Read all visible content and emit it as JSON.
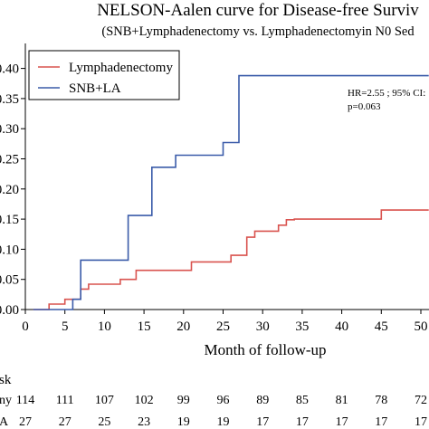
{
  "chart_data": {
    "type": "line",
    "title": "NELSON-Aalen curve for Disease-free Surviv",
    "subtitle": "(SNB+Lymphadenectomy vs. Lymphadenectomyin N0 Sed",
    "xlabel": "Month of follow-up",
    "ylabel": "",
    "xlim": [
      0,
      51
    ],
    "ylim": [
      0,
      0.42
    ],
    "xticks": [
      0,
      5,
      10,
      15,
      20,
      25,
      30,
      35,
      40,
      45,
      50
    ],
    "xtick_labels": [
      "0",
      "5",
      "10",
      "15",
      "20",
      "25",
      "30",
      "35",
      "40",
      "45",
      "50"
    ],
    "yticks": [
      0.0,
      0.05,
      0.1,
      0.15,
      0.2,
      0.25,
      0.3,
      0.35,
      0.4
    ],
    "ytick_labels": [
      "0.00",
      "0.05",
      "0.10",
      "0.15",
      "0.20",
      "0.25",
      "0.30",
      "0.35",
      "0.40"
    ],
    "step": true,
    "legend_position": "top-left",
    "annotation": [
      "HR=2.55 ; 95% CI:",
      "p=0.063"
    ],
    "series": [
      {
        "name": "Lymphadenectomy",
        "color": "#d9534f",
        "x": [
          1,
          3,
          5,
          7,
          8,
          12,
          14,
          21,
          26,
          28,
          29,
          32,
          33,
          34,
          45,
          51
        ],
        "y": [
          0.0,
          0.009,
          0.017,
          0.034,
          0.042,
          0.05,
          0.065,
          0.079,
          0.09,
          0.12,
          0.13,
          0.14,
          0.149,
          0.15,
          0.165,
          0.165
        ]
      },
      {
        "name": "SNB+LA",
        "color": "#3a5ba9",
        "x": [
          1,
          6,
          7,
          13,
          16,
          19,
          25,
          27,
          51
        ],
        "y": [
          0.0,
          0.017,
          0.082,
          0.156,
          0.236,
          0.256,
          0.277,
          0.388,
          0.388
        ]
      }
    ],
    "risk_table": {
      "title": "sk",
      "rows": [
        {
          "label": "ny",
          "values": [
            "114",
            "111",
            "107",
            "102",
            "99",
            "96",
            "89",
            "85",
            "81",
            "78",
            "72"
          ]
        },
        {
          "label": "A",
          "values": [
            "27",
            "27",
            "25",
            "23",
            "19",
            "19",
            "17",
            "17",
            "17",
            "17",
            "17"
          ]
        }
      ]
    }
  }
}
